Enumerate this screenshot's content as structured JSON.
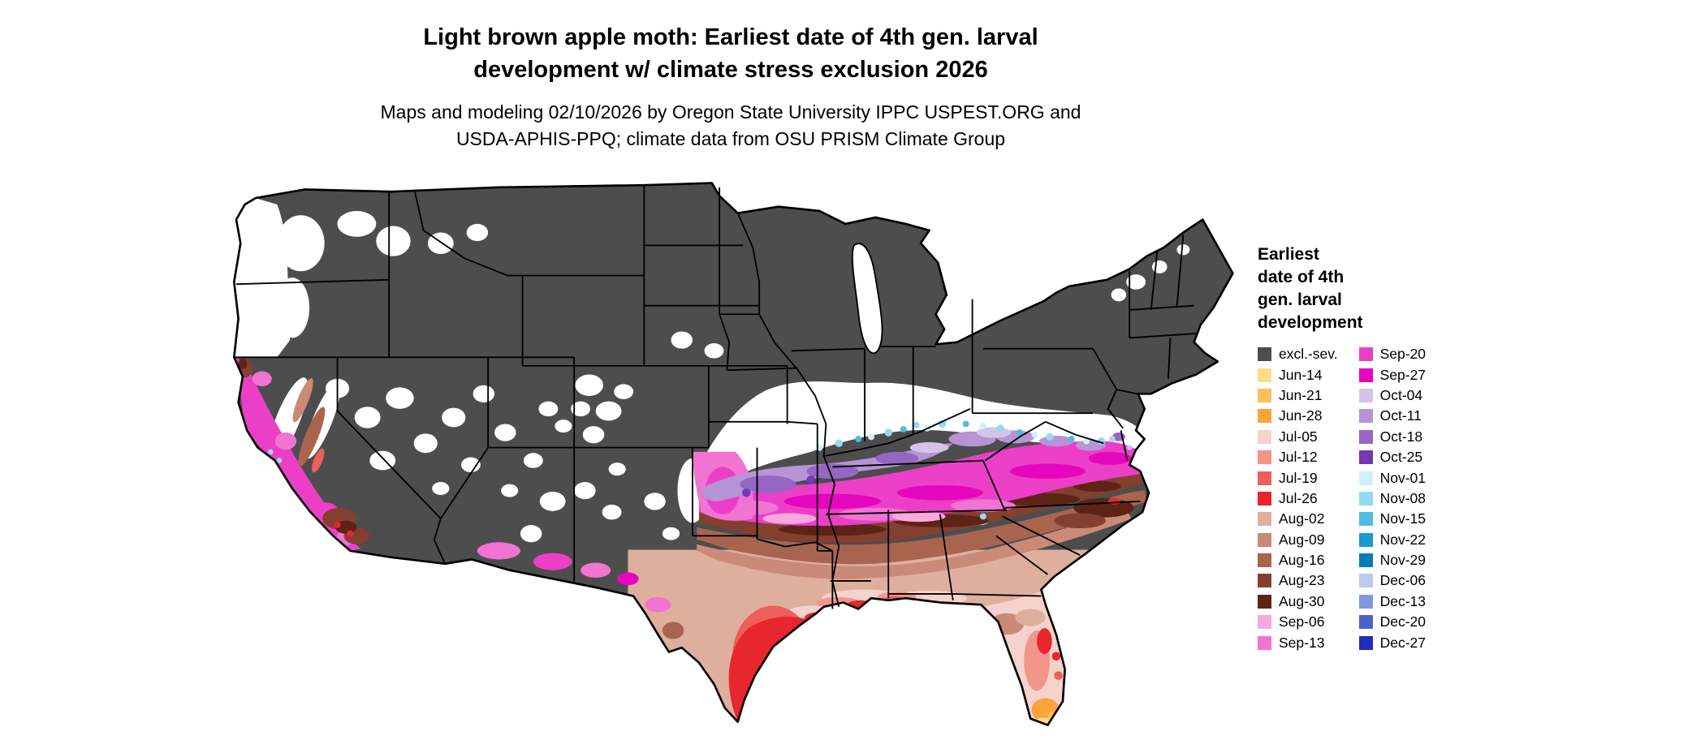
{
  "title": {
    "line1": "Light brown apple moth: Earliest date of 4th gen. larval",
    "line2": "development w/ climate stress exclusion 2026"
  },
  "subtitle": {
    "line1": "Maps and modeling 02/10/2026 by Oregon State University IPPC USPEST.ORG and",
    "line2": "USDA-APHIS-PPQ; climate data from OSU PRISM Climate Group"
  },
  "colors": {
    "excl_sev": "#4D4D4D",
    "jun_14": "#FFDE85",
    "jun_21": "#FDC05C",
    "jun_28": "#FBA33C",
    "jul_05": "#F5D2CB",
    "jul_12": "#F2968C",
    "jul_19": "#ED5F5A",
    "jul_26": "#E8262D",
    "aug_02": "#DFAF9E",
    "aug_09": "#C98B78",
    "aug_16": "#A96450",
    "aug_23": "#83402F",
    "aug_30": "#5E2317",
    "sep_06": "#F7A8DC",
    "sep_13": "#F173D2",
    "sep_20": "#EC3FC8",
    "sep_27": "#E606BE",
    "oct_04": "#D5C3E8",
    "oct_11": "#B694D6",
    "oct_18": "#9566C4",
    "oct_25": "#7438B2",
    "nov_01": "#CFF0FA",
    "nov_08": "#92DBF2",
    "nov_15": "#4FBCE3",
    "nov_22": "#189CD3",
    "nov_29": "#007CB8",
    "dec_06": "#BBCCEE",
    "dec_13": "#8099DD",
    "dec_20": "#4A63CC",
    "dec_27": "#1F2DB8",
    "map_background": "#FFFFFF",
    "border": "#000000"
  },
  "legend": {
    "title_text": "Earliest\ndate of 4th\ngen. larval\ndevelopment",
    "columns": [
      [
        {
          "label": "excl.-sev.",
          "color_key": "excl_sev"
        },
        {
          "label": "Jun-14",
          "color_key": "jun_14"
        },
        {
          "label": "Jun-21",
          "color_key": "jun_21"
        },
        {
          "label": "Jun-28",
          "color_key": "jun_28"
        },
        {
          "label": "Jul-05",
          "color_key": "jul_05"
        },
        {
          "label": "Jul-12",
          "color_key": "jul_12"
        },
        {
          "label": "Jul-19",
          "color_key": "jul_19"
        },
        {
          "label": "Jul-26",
          "color_key": "jul_26"
        },
        {
          "label": "Aug-02",
          "color_key": "aug_02"
        },
        {
          "label": "Aug-09",
          "color_key": "aug_09"
        },
        {
          "label": "Aug-16",
          "color_key": "aug_16"
        },
        {
          "label": "Aug-23",
          "color_key": "aug_23"
        },
        {
          "label": "Aug-30",
          "color_key": "aug_30"
        },
        {
          "label": "Sep-06",
          "color_key": "sep_06"
        },
        {
          "label": "Sep-13",
          "color_key": "sep_13"
        }
      ],
      [
        {
          "label": "Sep-20",
          "color_key": "sep_20"
        },
        {
          "label": "Sep-27",
          "color_key": "sep_27"
        },
        {
          "label": "Oct-04",
          "color_key": "oct_04"
        },
        {
          "label": "Oct-11",
          "color_key": "oct_11"
        },
        {
          "label": "Oct-18",
          "color_key": "oct_18"
        },
        {
          "label": "Oct-25",
          "color_key": "oct_25"
        },
        {
          "label": "Nov-01",
          "color_key": "nov_01"
        },
        {
          "label": "Nov-08",
          "color_key": "nov_08"
        },
        {
          "label": "Nov-15",
          "color_key": "nov_15"
        },
        {
          "label": "Nov-22",
          "color_key": "nov_22"
        },
        {
          "label": "Nov-29",
          "color_key": "nov_29"
        },
        {
          "label": "Dec-06",
          "color_key": "dec_06"
        },
        {
          "label": "Dec-13",
          "color_key": "dec_13"
        },
        {
          "label": "Dec-20",
          "color_key": "dec_20"
        },
        {
          "label": "Dec-27",
          "color_key": "dec_27"
        }
      ]
    ]
  }
}
